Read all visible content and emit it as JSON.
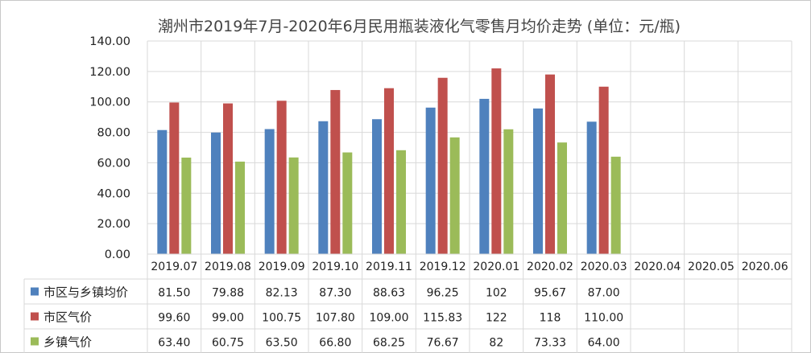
{
  "chart_data": {
    "type": "bar",
    "title": "潮州市2019年7月-2020年6月民用瓶装液化气零售月均价走势 (单位：元/瓶)",
    "categories": [
      "2019.07",
      "2019.08",
      "2019.09",
      "2019.10",
      "2019.11",
      "2019.12",
      "2020.01",
      "2020.02",
      "2020.03",
      "2020.04",
      "2020.05",
      "2020.06"
    ],
    "series": [
      {
        "name": "市区与乡镇均价",
        "color": "#4f81bd",
        "values": [
          81.5,
          79.88,
          82.13,
          87.3,
          88.63,
          96.25,
          102,
          95.67,
          87.0,
          null,
          null,
          null
        ],
        "labels": [
          "81.50",
          "79.88",
          "82.13",
          "87.30",
          "88.63",
          "96.25",
          "102",
          "95.67",
          "87.00",
          "",
          "",
          ""
        ]
      },
      {
        "name": "市区气价",
        "color": "#c0504d",
        "values": [
          99.6,
          99.0,
          100.75,
          107.8,
          109.0,
          115.83,
          122,
          118,
          110.0,
          null,
          null,
          null
        ],
        "labels": [
          "99.60",
          "99.00",
          "100.75",
          "107.80",
          "109.00",
          "115.83",
          "122",
          "118",
          "110.00",
          "",
          "",
          ""
        ]
      },
      {
        "name": "乡镇气价",
        "color": "#9bbb59",
        "values": [
          63.4,
          60.75,
          63.5,
          66.8,
          68.25,
          76.67,
          82,
          73.33,
          64.0,
          null,
          null,
          null
        ],
        "labels": [
          "63.40",
          "60.75",
          "63.50",
          "66.80",
          "68.25",
          "76.67",
          "82",
          "73.33",
          "64.00",
          "",
          "",
          ""
        ]
      }
    ],
    "ylim": [
      0,
      140
    ],
    "yticks": [
      "0.00",
      "20.00",
      "40.00",
      "60.00",
      "80.00",
      "100.00",
      "120.00",
      "140.00"
    ],
    "grid": true,
    "legend": "data-table"
  }
}
